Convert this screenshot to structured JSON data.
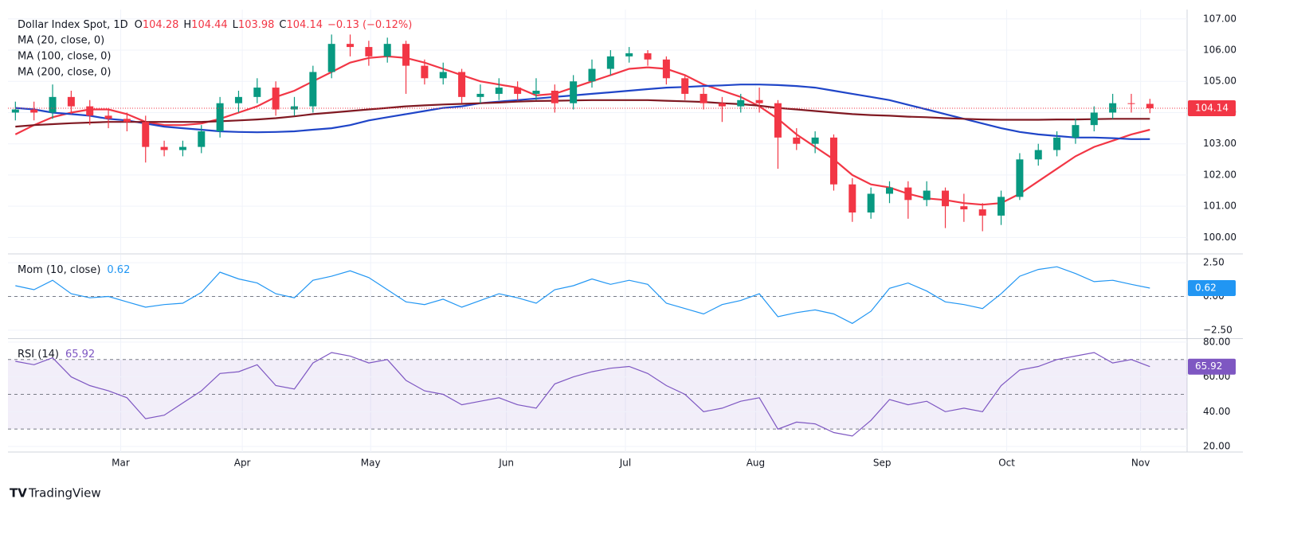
{
  "header": {
    "title": "Dollar Index Spot, 1D",
    "ohlc_labels": [
      "O",
      "H",
      "L",
      "C"
    ],
    "change_label": "−0.13 (−0.12%)"
  },
  "branding": "TradingView",
  "chart_data": [
    {
      "type": "candlestick",
      "x": [
        0,
        1,
        2,
        3,
        4,
        5,
        6,
        7,
        8,
        9,
        10,
        11,
        12,
        13,
        14,
        15,
        16,
        17,
        18,
        19,
        20,
        21,
        22,
        23,
        24,
        25,
        26,
        27,
        28,
        29,
        30,
        31,
        32,
        33,
        34,
        35,
        36,
        37,
        38,
        39,
        40,
        41,
        42,
        43,
        44,
        45,
        46,
        47,
        48,
        49,
        50,
        51,
        52,
        53,
        54,
        55,
        56,
        57,
        58,
        59,
        60,
        61
      ],
      "xlim": [
        -0.4,
        63
      ],
      "xticks": [
        {
          "value": 5.66,
          "label": "Mar"
        },
        {
          "value": 12.2,
          "label": "Apr"
        },
        {
          "value": 19.1,
          "label": "May"
        },
        {
          "value": 26.4,
          "label": "Jun"
        },
        {
          "value": 32.8,
          "label": "Jul"
        },
        {
          "value": 39.8,
          "label": "Aug"
        },
        {
          "value": 46.6,
          "label": "Sep"
        },
        {
          "value": 53.3,
          "label": "Oct"
        },
        {
          "value": 60.5,
          "label": "Nov"
        }
      ],
      "ylim": [
        99.5,
        107.3
      ],
      "yticks": [
        {
          "value": 100,
          "label": "100.00"
        },
        {
          "value": 101,
          "label": "101.00"
        },
        {
          "value": 102,
          "label": "102.00"
        },
        {
          "value": 103,
          "label": "103.00"
        },
        {
          "value": 104,
          "label": "104.00"
        },
        {
          "value": 105,
          "label": "105.00"
        },
        {
          "value": 106,
          "label": "106.00"
        },
        {
          "value": 107,
          "label": "107.00"
        }
      ],
      "open": [
        104.0,
        104.1,
        104.0,
        104.5,
        104.2,
        103.9,
        103.8,
        103.7,
        102.9,
        102.8,
        102.9,
        103.4,
        104.3,
        104.5,
        104.8,
        104.1,
        104.2,
        105.3,
        106.2,
        106.1,
        105.8,
        106.2,
        105.5,
        105.1,
        105.3,
        104.5,
        104.6,
        104.8,
        104.6,
        104.7,
        104.3,
        105.0,
        105.4,
        105.8,
        105.9,
        105.7,
        105.1,
        104.6,
        104.3,
        104.2,
        104.4,
        104.3,
        103.2,
        103.0,
        103.2,
        101.7,
        100.8,
        101.4,
        101.6,
        101.2,
        101.5,
        101.0,
        100.9,
        100.7,
        101.3,
        102.5,
        102.8,
        103.2,
        103.6,
        104.0,
        104.3,
        104.28
      ],
      "high": [
        104.35,
        104.35,
        104.9,
        104.7,
        104.4,
        104.1,
        104.0,
        103.9,
        103.1,
        103.1,
        103.6,
        104.5,
        104.7,
        105.1,
        105.0,
        104.5,
        105.5,
        106.5,
        106.5,
        106.3,
        106.4,
        106.3,
        105.7,
        105.6,
        105.4,
        104.9,
        105.1,
        105.0,
        105.1,
        104.9,
        105.2,
        105.7,
        106.0,
        106.1,
        106.0,
        105.8,
        105.2,
        104.8,
        104.5,
        104.6,
        104.8,
        104.4,
        103.5,
        103.4,
        103.3,
        101.9,
        101.6,
        101.8,
        101.8,
        101.8,
        101.6,
        101.4,
        101.1,
        101.5,
        102.7,
        103.0,
        103.4,
        103.8,
        104.2,
        104.6,
        104.6,
        104.44
      ],
      "low": [
        103.75,
        103.75,
        103.8,
        103.95,
        103.6,
        103.5,
        103.4,
        102.4,
        102.6,
        102.6,
        102.7,
        103.2,
        104.0,
        104.3,
        103.9,
        103.9,
        104.0,
        105.1,
        105.8,
        105.5,
        105.6,
        104.6,
        104.9,
        104.9,
        104.3,
        104.3,
        104.4,
        104.4,
        104.4,
        104.0,
        104.1,
        104.8,
        105.2,
        105.6,
        105.5,
        104.9,
        104.4,
        104.1,
        103.7,
        104.0,
        104.0,
        102.2,
        102.8,
        102.7,
        101.5,
        100.5,
        100.6,
        101.1,
        100.6,
        101.0,
        100.3,
        100.5,
        100.2,
        100.4,
        101.2,
        102.3,
        102.6,
        103.0,
        103.4,
        103.8,
        104.0,
        103.98
      ],
      "close": [
        104.1,
        104.0,
        104.5,
        104.2,
        103.9,
        103.8,
        103.7,
        102.9,
        102.8,
        102.9,
        103.4,
        104.3,
        104.5,
        104.8,
        104.1,
        104.2,
        105.3,
        106.2,
        106.1,
        105.8,
        106.2,
        105.5,
        105.1,
        105.3,
        104.5,
        104.6,
        104.8,
        104.6,
        104.7,
        104.3,
        105.0,
        105.4,
        105.8,
        105.9,
        105.7,
        105.1,
        104.6,
        104.3,
        104.2,
        104.4,
        104.3,
        103.2,
        103.0,
        103.2,
        101.7,
        100.8,
        101.4,
        101.6,
        101.2,
        101.5,
        101.0,
        100.9,
        100.7,
        101.3,
        102.5,
        102.8,
        103.2,
        103.6,
        104.0,
        104.3,
        104.28,
        104.14
      ],
      "up_color": "#089981",
      "down_color": "#f23645",
      "series": [
        {
          "name": "MA (20, close, 0)",
          "color": "#f23645",
          "values": [
            103.3,
            103.6,
            103.85,
            104.0,
            104.1,
            104.1,
            103.95,
            103.7,
            103.6,
            103.6,
            103.65,
            103.8,
            104.0,
            104.2,
            104.5,
            104.7,
            105.0,
            105.3,
            105.6,
            105.75,
            105.8,
            105.75,
            105.6,
            105.4,
            105.2,
            105.0,
            104.9,
            104.8,
            104.55,
            104.6,
            104.8,
            105.0,
            105.2,
            105.4,
            105.45,
            105.4,
            105.2,
            104.9,
            104.7,
            104.5,
            104.2,
            103.8,
            103.3,
            102.9,
            102.5,
            102.0,
            101.7,
            101.6,
            101.4,
            101.25,
            101.2,
            101.1,
            101.05,
            101.1,
            101.4,
            101.8,
            102.2,
            102.6,
            102.9,
            103.1,
            103.3,
            103.45
          ]
        },
        {
          "name": "MA (100, close, 0)",
          "color": "#1f45c8",
          "values": [
            104.15,
            104.1,
            104.0,
            103.95,
            103.9,
            103.8,
            103.75,
            103.65,
            103.55,
            103.5,
            103.45,
            103.4,
            103.38,
            103.37,
            103.38,
            103.4,
            103.45,
            103.5,
            103.6,
            103.75,
            103.85,
            103.95,
            104.05,
            104.15,
            104.2,
            104.3,
            104.35,
            104.4,
            104.45,
            104.5,
            104.55,
            104.6,
            104.65,
            104.7,
            104.75,
            104.8,
            104.82,
            104.85,
            104.87,
            104.9,
            104.9,
            104.88,
            104.85,
            104.8,
            104.7,
            104.6,
            104.5,
            104.4,
            104.25,
            104.1,
            103.95,
            103.8,
            103.65,
            103.5,
            103.38,
            103.3,
            103.25,
            103.2,
            103.2,
            103.18,
            103.15,
            103.15
          ]
        },
        {
          "name": "MA (200, close, 0)",
          "color": "#801922",
          "values": [
            103.55,
            103.6,
            103.63,
            103.66,
            103.68,
            103.7,
            103.7,
            103.7,
            103.7,
            103.7,
            103.7,
            103.72,
            103.75,
            103.78,
            103.82,
            103.88,
            103.95,
            104.0,
            104.05,
            104.1,
            104.15,
            104.2,
            104.23,
            104.26,
            104.28,
            104.3,
            104.32,
            104.35,
            104.37,
            104.38,
            104.39,
            104.4,
            104.4,
            104.4,
            104.4,
            104.38,
            104.36,
            104.34,
            104.3,
            104.27,
            104.22,
            104.15,
            104.1,
            104.05,
            104.0,
            103.95,
            103.92,
            103.9,
            103.87,
            103.85,
            103.82,
            103.8,
            103.78,
            103.77,
            103.77,
            103.77,
            103.78,
            103.78,
            103.79,
            103.8,
            103.8,
            103.8
          ]
        }
      ]
    },
    {
      "type": "line",
      "ylim": [
        -3.1,
        3.1
      ],
      "yticks": [
        {
          "value": -2.5,
          "label": "−2.50"
        },
        {
          "value": 0,
          "label": "0.00"
        },
        {
          "value": 2.5,
          "label": "2.50"
        }
      ],
      "levels": [
        0
      ],
      "series": [
        {
          "name": "Mom (10, close)",
          "color": "#2196f3",
          "values": [
            0.8,
            0.5,
            1.2,
            0.2,
            -0.1,
            0.0,
            -0.4,
            -0.8,
            -0.6,
            -0.5,
            0.3,
            1.8,
            1.3,
            1.0,
            0.2,
            -0.1,
            1.2,
            1.5,
            1.9,
            1.4,
            0.5,
            -0.4,
            -0.6,
            -0.2,
            -0.8,
            -0.3,
            0.2,
            -0.1,
            -0.5,
            0.5,
            0.8,
            1.3,
            0.9,
            1.2,
            0.9,
            -0.5,
            -0.9,
            -1.3,
            -0.6,
            -0.3,
            0.2,
            -1.5,
            -1.2,
            -1.0,
            -1.3,
            -2.0,
            -1.1,
            0.6,
            1.0,
            0.4,
            -0.4,
            -0.6,
            -0.9,
            0.2,
            1.5,
            2.0,
            2.2,
            1.7,
            1.1,
            1.2,
            0.9,
            0.62
          ]
        }
      ]
    },
    {
      "type": "line",
      "ylim": [
        16.8,
        81.8
      ],
      "yticks": [
        {
          "value": 20,
          "label": "20.00"
        },
        {
          "value": 40,
          "label": "40.00"
        },
        {
          "value": 60,
          "label": "60.00"
        },
        {
          "value": 80,
          "label": "80.00"
        }
      ],
      "levels": [
        70,
        50,
        30
      ],
      "band_color": "rgba(126,87,194,0.1)",
      "series": [
        {
          "name": "RSI (14)",
          "color": "#7e57c2",
          "values": [
            69,
            67,
            71,
            60,
            55,
            52,
            48,
            36,
            38,
            45,
            52,
            62,
            63,
            67,
            55,
            53,
            68,
            74,
            72,
            68,
            70,
            58,
            52,
            50,
            44,
            46,
            48,
            44,
            42,
            56,
            60,
            63,
            65,
            66,
            62,
            55,
            50,
            40,
            42,
            46,
            48,
            30,
            34,
            33,
            28,
            26,
            35,
            47,
            44,
            46,
            40,
            42,
            40,
            55,
            64,
            66,
            70,
            72,
            74,
            68,
            70,
            65.92
          ]
        }
      ]
    }
  ]
}
